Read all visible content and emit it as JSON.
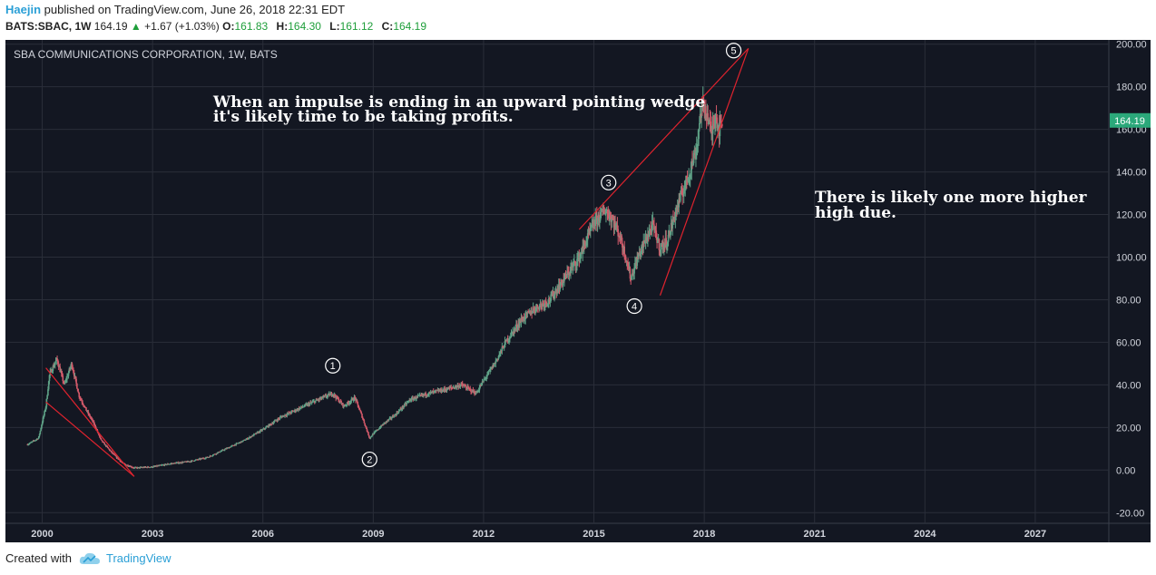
{
  "header": {
    "author": "Haejin",
    "published_text": " published on TradingView.com, June 26, 2018 22:31 EDT",
    "symbol": "BATS:SBAC, 1W",
    "price": "164.19",
    "change": "+1.67 (+1.03%)",
    "open_label": "O:",
    "open_value": "161.83",
    "high_label": "H:",
    "high_value": "164.30",
    "low_label": "L:",
    "low_value": "161.12",
    "close_label": "C:",
    "close_value": "164.19"
  },
  "footer": {
    "created_with": "Created with",
    "brand": "TradingView"
  },
  "colors": {
    "background": "#131722",
    "grid": "#2a2e39",
    "up": "#5fa287",
    "down": "#d35a6a",
    "line": "#e0232e",
    "text": "#ffffff",
    "axis_text": "#d1d4dc",
    "price_badge": "#2ba87a"
  },
  "chart_data": {
    "type": "candlestick",
    "title": "SBA COMMUNICATIONS CORPORATION, 1W, BATS",
    "xlabel": "",
    "ylabel": "",
    "xlim": [
      1999.0,
      2029.0
    ],
    "ylim": [
      -25,
      202
    ],
    "x_ticks": [
      2000,
      2003,
      2006,
      2009,
      2012,
      2015,
      2018,
      2021,
      2024,
      2027
    ],
    "x_tick_labels": [
      "2000",
      "2003",
      "2006",
      "2009",
      "2012",
      "2015",
      "2018",
      "2021",
      "2024",
      "2027"
    ],
    "y_ticks": [
      -20,
      0,
      20,
      40,
      60,
      80,
      100,
      120,
      140,
      160,
      180,
      200
    ],
    "y_tick_labels": [
      "-20.00",
      "0.00",
      "20.00",
      "40.00",
      "60.00",
      "80.00",
      "100.00",
      "120.00",
      "140.00",
      "160.00",
      "180.00",
      "200.00"
    ],
    "last_price": 164.19,
    "last_price_label": "164.19",
    "price_path": [
      [
        1999.6,
        12
      ],
      [
        1999.9,
        15
      ],
      [
        2000.1,
        30
      ],
      [
        2000.2,
        45
      ],
      [
        2000.4,
        52
      ],
      [
        2000.6,
        40
      ],
      [
        2000.8,
        50
      ],
      [
        2001.0,
        35
      ],
      [
        2001.2,
        28
      ],
      [
        2001.4,
        22
      ],
      [
        2001.6,
        14
      ],
      [
        2001.9,
        8
      ],
      [
        2002.2,
        3
      ],
      [
        2002.5,
        1
      ],
      [
        2003.0,
        1.5
      ],
      [
        2003.5,
        3
      ],
      [
        2004.0,
        4
      ],
      [
        2004.5,
        6
      ],
      [
        2005.0,
        10
      ],
      [
        2005.5,
        14
      ],
      [
        2006.0,
        19
      ],
      [
        2006.5,
        25
      ],
      [
        2007.0,
        29
      ],
      [
        2007.5,
        33
      ],
      [
        2007.9,
        36
      ],
      [
        2008.2,
        30
      ],
      [
        2008.5,
        34
      ],
      [
        2008.7,
        25
      ],
      [
        2008.9,
        15
      ],
      [
        2009.0,
        17
      ],
      [
        2009.3,
        22
      ],
      [
        2009.6,
        26
      ],
      [
        2010.0,
        33
      ],
      [
        2010.5,
        36
      ],
      [
        2011.0,
        38
      ],
      [
        2011.4,
        40
      ],
      [
        2011.8,
        36
      ],
      [
        2012.0,
        42
      ],
      [
        2012.3,
        50
      ],
      [
        2012.6,
        60
      ],
      [
        2013.0,
        70
      ],
      [
        2013.4,
        76
      ],
      [
        2013.8,
        80
      ],
      [
        2014.2,
        90
      ],
      [
        2014.6,
        100
      ],
      [
        2014.8,
        108
      ],
      [
        2015.0,
        116
      ],
      [
        2015.3,
        122
      ],
      [
        2015.5,
        118
      ],
      [
        2015.7,
        110
      ],
      [
        2015.9,
        98
      ],
      [
        2016.0,
        90
      ],
      [
        2016.2,
        100
      ],
      [
        2016.4,
        108
      ],
      [
        2016.6,
        115
      ],
      [
        2016.8,
        104
      ],
      [
        2017.0,
        108
      ],
      [
        2017.2,
        120
      ],
      [
        2017.4,
        130
      ],
      [
        2017.6,
        140
      ],
      [
        2017.8,
        152
      ],
      [
        2017.9,
        168
      ],
      [
        2018.0,
        172
      ],
      [
        2018.1,
        165
      ],
      [
        2018.2,
        158
      ],
      [
        2018.3,
        168
      ],
      [
        2018.4,
        160
      ],
      [
        2018.5,
        164.19
      ]
    ],
    "trendlines": [
      {
        "name": "early-wedge-upper",
        "from": [
          2000.1,
          48
        ],
        "to": [
          2002.5,
          -3
        ]
      },
      {
        "name": "early-wedge-lower",
        "from": [
          2000.1,
          32
        ],
        "to": [
          2002.5,
          -3
        ]
      },
      {
        "name": "ending-wedge-upper",
        "from": [
          2014.6,
          113
        ],
        "to": [
          2019.2,
          198
        ]
      },
      {
        "name": "ending-wedge-lower",
        "from": [
          2016.8,
          82
        ],
        "to": [
          2019.2,
          198
        ]
      }
    ],
    "wave_labels": [
      {
        "label": "1",
        "x": 2007.9,
        "y": 49
      },
      {
        "label": "2",
        "x": 2008.9,
        "y": 5
      },
      {
        "label": "3",
        "x": 2015.4,
        "y": 135
      },
      {
        "label": "4",
        "x": 2016.1,
        "y": 77
      },
      {
        "label": "5",
        "x": 2018.8,
        "y": 197
      }
    ],
    "annotations": [
      "When an impulse is ending in an upward pointing wedge",
      "it's likely time to be taking profits.",
      "There is likely one more higher",
      "high due."
    ]
  }
}
